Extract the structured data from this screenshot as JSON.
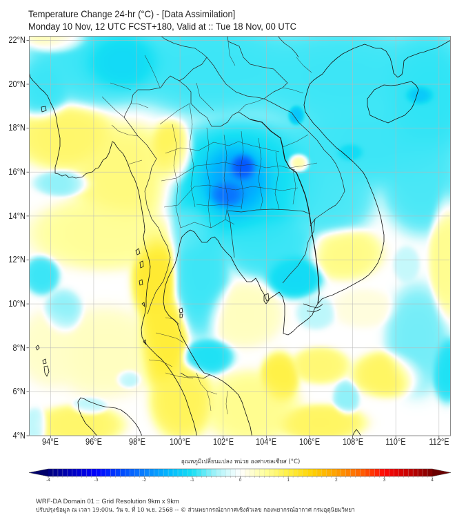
{
  "header": {
    "title": "Temperature Change 24-hr (°C) - [Data Assimilation]",
    "subtitle": "Monday 10 Nov, 12 UTC FCST+180, Valid at :: Tue 18 Nov, 00 UTC"
  },
  "map": {
    "lon_range": [
      93,
      112.55
    ],
    "lat_range": [
      4,
      22.2
    ],
    "gridlines": true,
    "x_ticks": [
      {
        "value": 94,
        "label": "94°E"
      },
      {
        "value": 96,
        "label": "96°E"
      },
      {
        "value": 98,
        "label": "98°E"
      },
      {
        "value": 100,
        "label": "100°E"
      },
      {
        "value": 102,
        "label": "102°E"
      },
      {
        "value": 104,
        "label": "104°E"
      },
      {
        "value": 106,
        "label": "106°E"
      },
      {
        "value": 108,
        "label": "108°E"
      },
      {
        "value": 110,
        "label": "110°E"
      },
      {
        "value": 112,
        "label": "112°E"
      }
    ],
    "y_ticks": [
      {
        "value": 22,
        "label": "22°N"
      },
      {
        "value": 20,
        "label": "20°N"
      },
      {
        "value": 18,
        "label": "18°N"
      },
      {
        "value": 16,
        "label": "16°N"
      },
      {
        "value": 14,
        "label": "14°N"
      },
      {
        "value": 12,
        "label": "12°N"
      },
      {
        "value": 10,
        "label": "10°N"
      },
      {
        "value": 8,
        "label": "8°N"
      },
      {
        "value": 6,
        "label": "6°N"
      },
      {
        "value": 4,
        "label": "4°N"
      }
    ],
    "colors": {
      "coastline": "#1a1a1a",
      "border": "#2e2e2e",
      "grid": "#b8b8b8",
      "frame": "#8c8c8c"
    }
  },
  "colorbar": {
    "label": "อุณหภูมิเปลี่ยนแปลง หน่วย องศาเซลเซียส (°C)",
    "range": [
      -4,
      4
    ],
    "step": 0.1,
    "extend": "both",
    "ticks": [
      {
        "value": -4,
        "label": "-4"
      },
      {
        "value": -3,
        "label": "-3"
      },
      {
        "value": -2,
        "label": "-2"
      },
      {
        "value": -1,
        "label": "-1"
      },
      {
        "value": 0,
        "label": "0"
      },
      {
        "value": 1,
        "label": "1"
      },
      {
        "value": 2,
        "label": "2"
      },
      {
        "value": 3,
        "label": "3"
      },
      {
        "value": 4,
        "label": "4"
      }
    ],
    "stops": [
      [
        -4,
        "#00007a"
      ],
      [
        -3.5,
        "#0000c0"
      ],
      [
        -3,
        "#0000ff"
      ],
      [
        -2.5,
        "#0046ff"
      ],
      [
        -2,
        "#0a80ff"
      ],
      [
        -1.5,
        "#00b8ff"
      ],
      [
        -1,
        "#16e0f4"
      ],
      [
        -0.5,
        "#a6f4fa"
      ],
      [
        -0.15,
        "#e8fcfd"
      ],
      [
        0,
        "#ffffff"
      ],
      [
        0.15,
        "#fffde4"
      ],
      [
        0.5,
        "#ffff9e"
      ],
      [
        1,
        "#fff040"
      ],
      [
        1.5,
        "#ffd200"
      ],
      [
        2,
        "#ffa000"
      ],
      [
        2.5,
        "#ff6400"
      ],
      [
        3,
        "#ff0808"
      ],
      [
        3.5,
        "#c80000"
      ],
      [
        4,
        "#7a0000"
      ]
    ],
    "extend_colors": {
      "under": "#00006a",
      "over": "#6a0000"
    }
  },
  "footer": {
    "line1": "WRF-DA Domain 01 :: Grid Resolution 9km x 9km",
    "line2": "ปรับปรุงข้อมูล ณ เวลา 19:00น. วัน จ. ที่ 10 พ.ย. 2568 -- © ส่วนพยากรณ์อากาศเชิงตัวเลข กองพยากรณ์อากาศ กรมอุตุนิยมวิทยา"
  }
}
